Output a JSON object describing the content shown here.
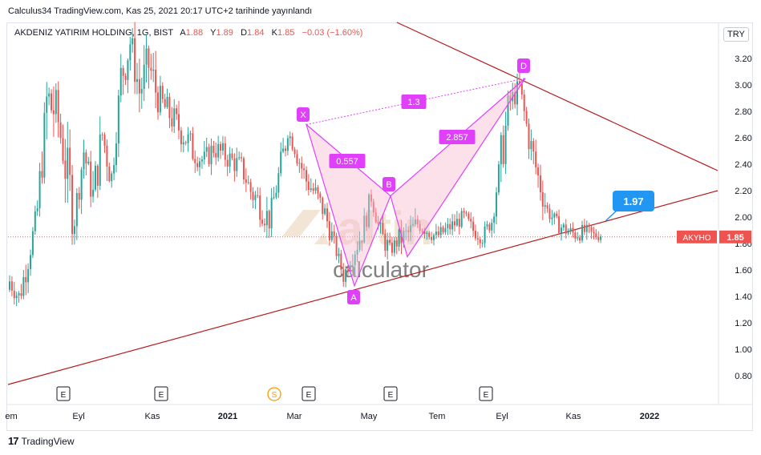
{
  "header": {
    "published": "Calculus34 TradingView.com, Kas 25, 2021 20:17 UTC+2 tarihinde yayınlandı"
  },
  "legend": {
    "name": "AKDENIZ YATIRIM HOLDING, 1G, BIST",
    "open_label": "A",
    "open": "1.88",
    "high_label": "Y",
    "high": "1.89",
    "low_label": "D",
    "low": "1.84",
    "close_label": "K",
    "close": "1.85",
    "change": "−0.03 (−1.60%)"
  },
  "currency": "TRY",
  "footer": {
    "brand": "TradingView",
    "logo": "17"
  },
  "watermark": {
    "top": "altin",
    "bottom": "calculator"
  },
  "colors": {
    "up": "#26a69a",
    "down": "#ef5350",
    "pattern": "#e040fb",
    "pattern_fill": "#f8bbd0",
    "trendline": "#b71c1c",
    "callout": "#2196f3",
    "price_tag": "#ef5350"
  },
  "chart_data": {
    "type": "candlestick",
    "symbol": "AKYHO",
    "current_price": 1.85,
    "price_tag": "1.85",
    "y_ticks": [
      "3.20",
      "3.00",
      "2.80",
      "2.60",
      "2.40",
      "2.20",
      "2.00",
      "1.80",
      "1.60",
      "1.40",
      "1.20",
      "1.00",
      "0.80"
    ],
    "ylim": [
      0.7,
      3.4
    ],
    "x_ticks": [
      "em",
      "Eyl",
      "Kas",
      "2021",
      "Mar",
      "May",
      "Tem",
      "Eyl",
      "Kas",
      "2022"
    ],
    "events": [
      {
        "label": "E",
        "type": "earnings"
      },
      {
        "label": "E",
        "type": "earnings"
      },
      {
        "label": "S",
        "type": "split"
      },
      {
        "label": "E",
        "type": "earnings"
      },
      {
        "label": "E",
        "type": "earnings"
      },
      {
        "label": "E",
        "type": "earnings"
      }
    ],
    "path_points": [
      [
        1.45,
        1.58
      ],
      [
        1.3,
        1.48
      ],
      [
        1.6,
        1.75
      ],
      [
        1.9,
        2.2
      ],
      [
        2.6,
        3.1
      ],
      [
        2.7,
        2.95
      ],
      [
        2.2,
        2.6
      ],
      [
        1.9,
        2.1
      ],
      [
        2.4,
        2.6
      ],
      [
        2.0,
        2.3
      ],
      [
        2.5,
        2.75
      ],
      [
        2.2,
        2.4
      ],
      [
        2.9,
        3.2
      ],
      [
        3.2,
        3.45
      ],
      [
        2.8,
        3.1
      ],
      [
        3.0,
        3.3
      ],
      [
        2.8,
        3.0
      ],
      [
        2.7,
        2.9
      ],
      [
        2.6,
        2.8
      ],
      [
        2.5,
        2.7
      ],
      [
        2.4,
        2.55
      ],
      [
        2.35,
        2.5
      ],
      [
        2.45,
        2.6
      ],
      [
        2.4,
        2.55
      ],
      [
        2.35,
        2.5
      ],
      [
        2.3,
        2.45
      ],
      [
        2.1,
        2.3
      ],
      [
        2.0,
        2.2
      ],
      [
        1.9,
        2.05
      ],
      [
        2.2,
        2.4
      ],
      [
        2.6,
        2.7
      ],
      [
        2.4,
        2.55
      ],
      [
        2.2,
        2.35
      ],
      [
        2.1,
        2.25
      ],
      [
        1.95,
        2.1
      ],
      [
        1.75,
        1.85
      ],
      [
        1.5,
        1.6
      ],
      [
        1.65,
        1.8
      ],
      [
        1.8,
        1.95
      ],
      [
        2.1,
        2.2
      ],
      [
        1.8,
        1.95
      ],
      [
        1.7,
        1.8
      ],
      [
        1.75,
        1.9
      ],
      [
        1.8,
        1.95
      ],
      [
        1.9,
        2.0
      ],
      [
        1.85,
        1.95
      ],
      [
        1.8,
        1.9
      ],
      [
        1.85,
        1.95
      ],
      [
        1.9,
        2.0
      ],
      [
        1.95,
        2.05
      ],
      [
        1.85,
        1.95
      ],
      [
        1.8,
        1.9
      ],
      [
        1.9,
        2.05
      ],
      [
        2.3,
        2.6
      ],
      [
        2.8,
        2.95
      ],
      [
        2.9,
        3.05
      ],
      [
        2.5,
        2.7
      ],
      [
        2.2,
        2.4
      ],
      [
        2.0,
        2.1
      ],
      [
        1.9,
        2.0
      ],
      [
        1.85,
        1.95
      ],
      [
        1.82,
        1.92
      ],
      [
        1.84,
        1.94
      ],
      [
        1.82,
        1.9
      ],
      [
        1.84,
        1.9
      ]
    ],
    "harmonic_pattern": {
      "points": {
        "X": 2.7,
        "A": 1.48,
        "B": 2.16,
        "C": 1.7,
        "D": 3.05
      },
      "labels": [
        "X",
        "A",
        "B",
        "D"
      ],
      "ratios": {
        "XB": "0.557",
        "BD": "2.857",
        "XD": "1.3"
      }
    },
    "target_callout": "1.97"
  }
}
